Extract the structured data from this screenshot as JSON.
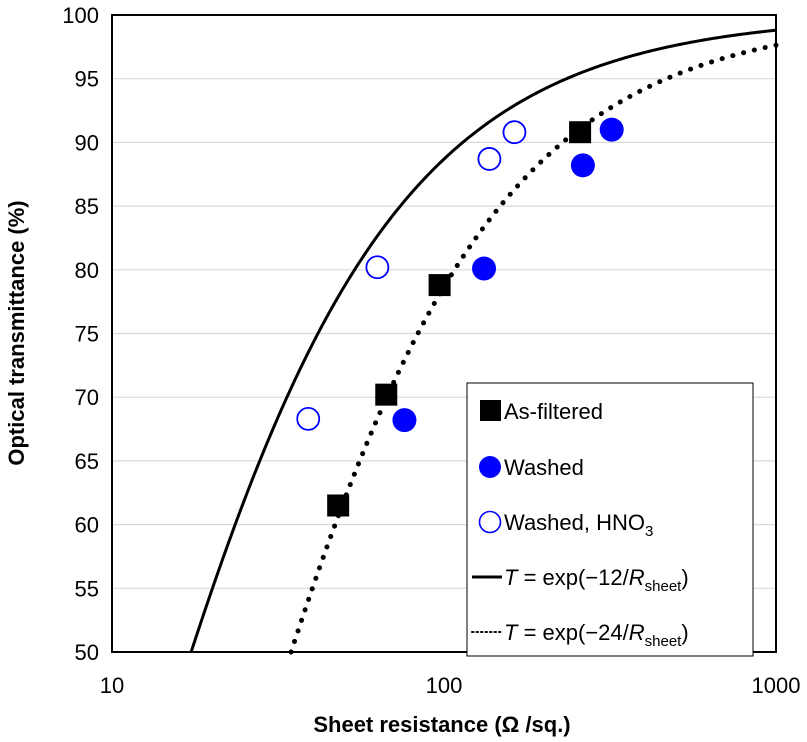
{
  "chart_data": {
    "type": "scatter",
    "xlabel": "Sheet resistance (Ω /sq.)",
    "ylabel": "Optical transmittance (%)",
    "x_scale": "log",
    "xlim": [
      10,
      1000
    ],
    "ylim": [
      50,
      100
    ],
    "x_ticks": [
      "10",
      "100",
      "1000"
    ],
    "y_ticks": [
      "50",
      "55",
      "60",
      "65",
      "70",
      "75",
      "80",
      "85",
      "90",
      "95",
      "100"
    ],
    "grid": "horizontal",
    "legend_position": "bottom-right",
    "series": [
      {
        "name": "As-filtered",
        "marker": "filled-square",
        "color": "#000000",
        "points": [
          [
            48,
            61.5
          ],
          [
            67,
            70.2
          ],
          [
            97,
            78.8
          ],
          [
            257,
            90.8
          ]
        ]
      },
      {
        "name": "Washed",
        "marker": "filled-circle",
        "color": "#0000ff",
        "points": [
          [
            76,
            68.2
          ],
          [
            132,
            80.1
          ],
          [
            262,
            88.2
          ],
          [
            320,
            91.0
          ]
        ]
      },
      {
        "name": "Washed, HNO3",
        "marker": "open-circle",
        "color": "#0000ff",
        "points": [
          [
            39,
            68.3
          ],
          [
            63,
            80.2
          ],
          [
            137,
            88.7
          ],
          [
            163,
            90.8
          ]
        ]
      }
    ],
    "curves": [
      {
        "label": "T = exp(−12/Rsheet)",
        "constant": 12,
        "style": "solid",
        "color": "#000000"
      },
      {
        "label": "T = exp(−24/Rsheet)",
        "constant": 24,
        "style": "dotted",
        "color": "#000000"
      }
    ],
    "legend_labels": {
      "as_filtered": "As-filtered",
      "washed": "Washed",
      "washed_hno3_main": "Washed, HNO",
      "washed_hno3_sub": "3",
      "t_symbol": "T",
      "eq_solid_mid": " = exp(−12/",
      "eq_dotted_mid": " = exp(−24/",
      "r_symbol": "R",
      "r_sub": "sheet",
      "close_paren": ")"
    }
  }
}
